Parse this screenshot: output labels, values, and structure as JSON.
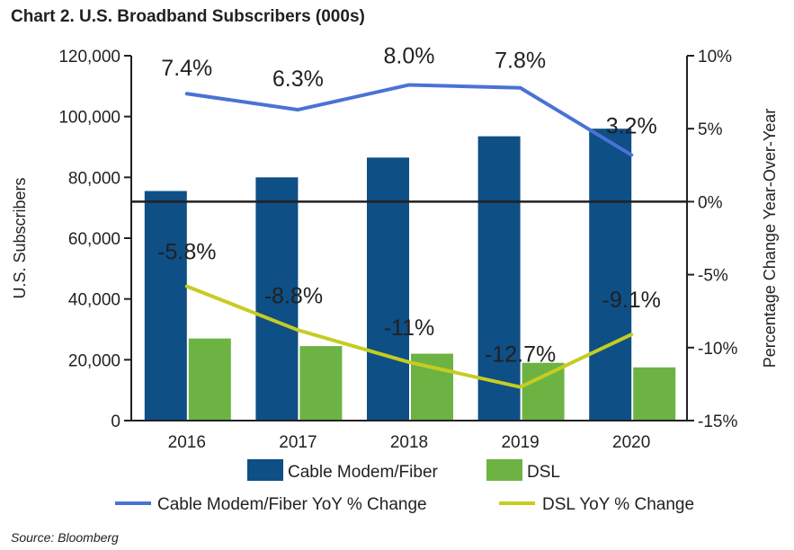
{
  "chart_data": {
    "type": "bar",
    "title": "Chart 2. U.S. Broadband Subscribers (000s)",
    "source": "Source: Bloomberg",
    "categories": [
      "2016",
      "2017",
      "2018",
      "2019",
      "2020"
    ],
    "ylabel": "U.S. Subscribers",
    "ylabel_right": "Percentage Change Year-Over-Year",
    "ylim": [
      0,
      120000
    ],
    "ylim_right": [
      -15,
      10
    ],
    "yticks": [
      "0",
      "20,000",
      "40,000",
      "60,000",
      "80,000",
      "100,000",
      "120,000"
    ],
    "yticks_right": [
      "-15%",
      "-10%",
      "-5%",
      "0%",
      "5%",
      "10%"
    ],
    "series": [
      {
        "name": "Cable Modem/Fiber",
        "kind": "bar",
        "axis": "left",
        "color": "#0e4f85",
        "values": [
          75500,
          80000,
          86500,
          93500,
          96000
        ]
      },
      {
        "name": "DSL",
        "kind": "bar",
        "axis": "left",
        "color": "#6cb344",
        "values": [
          27000,
          24500,
          22000,
          19000,
          17500
        ]
      },
      {
        "name": "Cable Modem/Fiber YoY % Change",
        "kind": "line",
        "axis": "right",
        "color": "#4a72d6",
        "values": [
          7.4,
          6.3,
          8.0,
          7.8,
          3.2
        ],
        "labels": [
          "7.4%",
          "6.3%",
          "8.0%",
          "7.8%",
          "3.2%"
        ]
      },
      {
        "name": "DSL YoY % Change",
        "kind": "line",
        "axis": "right",
        "color": "#c6cc22",
        "values": [
          -5.8,
          -8.8,
          -11,
          -12.7,
          -9.1
        ],
        "labels": [
          "-5.8%",
          "-8.8%",
          "-11%",
          "-12.7%",
          "-9.1%"
        ]
      }
    ],
    "legend": [
      {
        "label": "Cable Modem/Fiber",
        "icon": "bar-swatch"
      },
      {
        "label": "DSL",
        "icon": "bar-swatch"
      },
      {
        "label": "Cable Modem/Fiber YoY % Change",
        "icon": "line-swatch"
      },
      {
        "label": "DSL YoY % Change",
        "icon": "line-swatch"
      }
    ]
  }
}
